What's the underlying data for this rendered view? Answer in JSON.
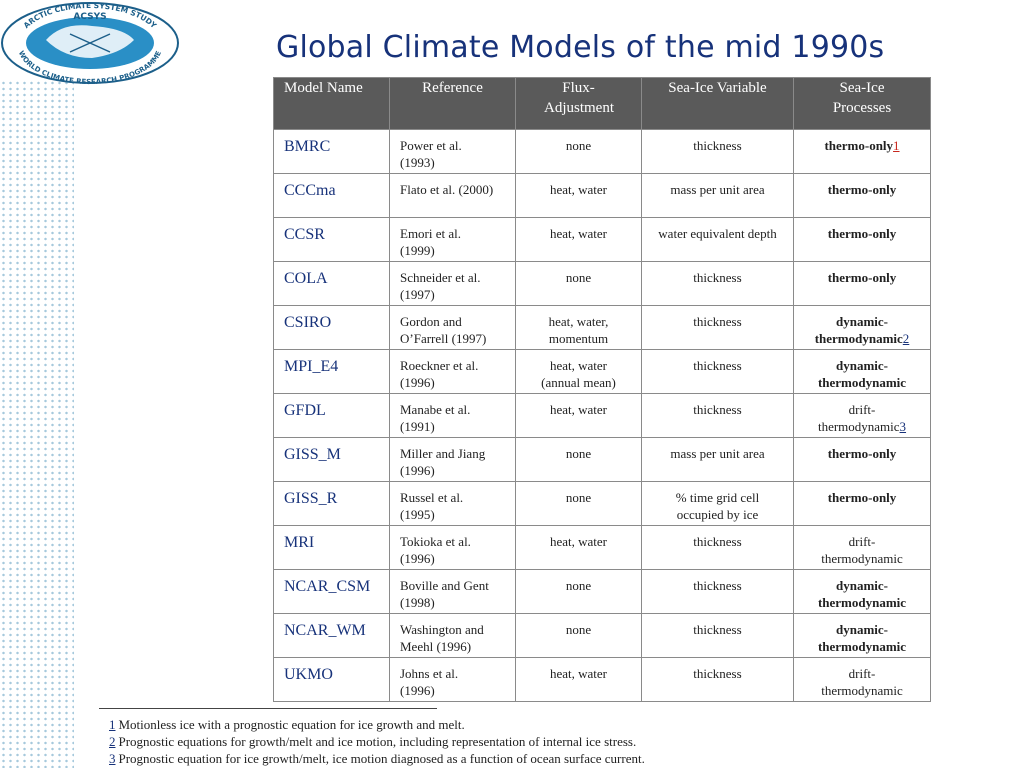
{
  "logo": {
    "top_text": "ARCTIC CLIMATE SYSTEM STUDY",
    "acronym": "ACSYS",
    "bottom_text": "WORLD CLIMATE RESEARCH PROGRAMME"
  },
  "title": "Global Climate Models of the mid 1990s",
  "table": {
    "headers": [
      "Model Name",
      "Reference",
      "Flux-Adjustment",
      "Sea-Ice Variable",
      "Sea-Ice Processes"
    ],
    "rows": [
      {
        "model": "BMRC",
        "ref1": "Power et al.",
        "ref2": "(1993)",
        "flux1": "none",
        "flux2": "",
        "var1": "thickness",
        "var2": "",
        "proc1": "thermo-only",
        "proc2": "",
        "fn": "1",
        "style": "thermo"
      },
      {
        "model": "CCCma",
        "ref1": "Flato et al. (2000)",
        "ref2": "",
        "flux1": "heat, water",
        "flux2": "",
        "var1": "mass per unit area",
        "var2": "",
        "proc1": "thermo-only",
        "proc2": "",
        "fn": "",
        "style": "thermo"
      },
      {
        "model": "CCSR",
        "ref1": "Emori et al.",
        "ref2": "(1999)",
        "flux1": "heat, water",
        "flux2": "",
        "var1": "water equivalent depth",
        "var2": "",
        "proc1": "thermo-only",
        "proc2": "",
        "fn": "",
        "style": "thermo"
      },
      {
        "model": "COLA",
        "ref1": "Schneider et al.",
        "ref2": "(1997)",
        "flux1": "none",
        "flux2": "",
        "var1": "thickness",
        "var2": "",
        "proc1": "thermo-only",
        "proc2": "",
        "fn": "",
        "style": "thermo"
      },
      {
        "model": "CSIRO",
        "ref1": "Gordon and",
        "ref2": "O’Farrell (1997)",
        "flux1": "heat, water,",
        "flux2": "momentum",
        "var1": "thickness",
        "var2": "",
        "proc1": "dynamic-",
        "proc2": "thermodynamic",
        "fn": "2",
        "style": "dynamic"
      },
      {
        "model": "MPI_E4",
        "ref1": "Roeckner et al.",
        "ref2": "(1996)",
        "flux1": "heat, water",
        "flux2": "(annual mean)",
        "var1": "thickness",
        "var2": "",
        "proc1": "dynamic-",
        "proc2": "thermodynamic",
        "fn": "",
        "style": "dynamic"
      },
      {
        "model": "GFDL",
        "ref1": "Manabe et al.",
        "ref2": "(1991)",
        "flux1": "heat, water",
        "flux2": "",
        "var1": "thickness",
        "var2": "",
        "proc1": "drift-",
        "proc2": "thermodynamic",
        "fn": "3",
        "style": "drift"
      },
      {
        "model": "GISS_M",
        "ref1": "Miller and Jiang",
        "ref2": "(1996)",
        "flux1": "none",
        "flux2": "",
        "var1": "mass per unit area",
        "var2": "",
        "proc1": "thermo-only",
        "proc2": "",
        "fn": "",
        "style": "thermo"
      },
      {
        "model": "GISS_R",
        "ref1": "Russel et al.",
        "ref2": "(1995)",
        "flux1": "none",
        "flux2": "",
        "var1": "% time grid cell",
        "var2": "occupied by ice",
        "proc1": "thermo-only",
        "proc2": "",
        "fn": "",
        "style": "thermo"
      },
      {
        "model": "MRI",
        "ref1": "Tokioka et al.",
        "ref2": "(1996)",
        "flux1": "heat, water",
        "flux2": "",
        "var1": "thickness",
        "var2": "",
        "proc1": "drift-",
        "proc2": "thermodynamic",
        "fn": "",
        "style": "drift"
      },
      {
        "model": "NCAR_CSM",
        "ref1": "Boville and Gent",
        "ref2": "(1998)",
        "flux1": "none",
        "flux2": "",
        "var1": "thickness",
        "var2": "",
        "proc1": "dynamic-",
        "proc2": "thermodynamic",
        "fn": "",
        "style": "dynamic"
      },
      {
        "model": "NCAR_WM",
        "ref1": "Washington and",
        "ref2": "Meehl (1996)",
        "flux1": "none",
        "flux2": "",
        "var1": "thickness",
        "var2": "",
        "proc1": "dynamic-",
        "proc2": "thermodynamic",
        "fn": "",
        "style": "dynamic"
      },
      {
        "model": "UKMO",
        "ref1": "Johns et al.",
        "ref2": "(1996)",
        "flux1": "heat, water",
        "flux2": "",
        "var1": "thickness",
        "var2": "",
        "proc1": "drift-",
        "proc2": "thermodynamic",
        "fn": "",
        "style": "drift"
      }
    ]
  },
  "footnotes": [
    {
      "num": "1",
      "text": "Motionless ice with a prognostic equation for ice growth and melt."
    },
    {
      "num": "2",
      "text": "Prognostic equations for growth/melt and ice motion, including representation of internal ice stress."
    },
    {
      "num": "3",
      "text": "Prognostic equation for ice growth/melt, ice motion  diagnosed as a function of ocean surface current."
    }
  ],
  "colors": {
    "title": "#17327a",
    "header_bg": "#5a5a5a",
    "thermo_only": "#c8281e",
    "dynamic_thermodynamic": "#1e9ad6"
  }
}
